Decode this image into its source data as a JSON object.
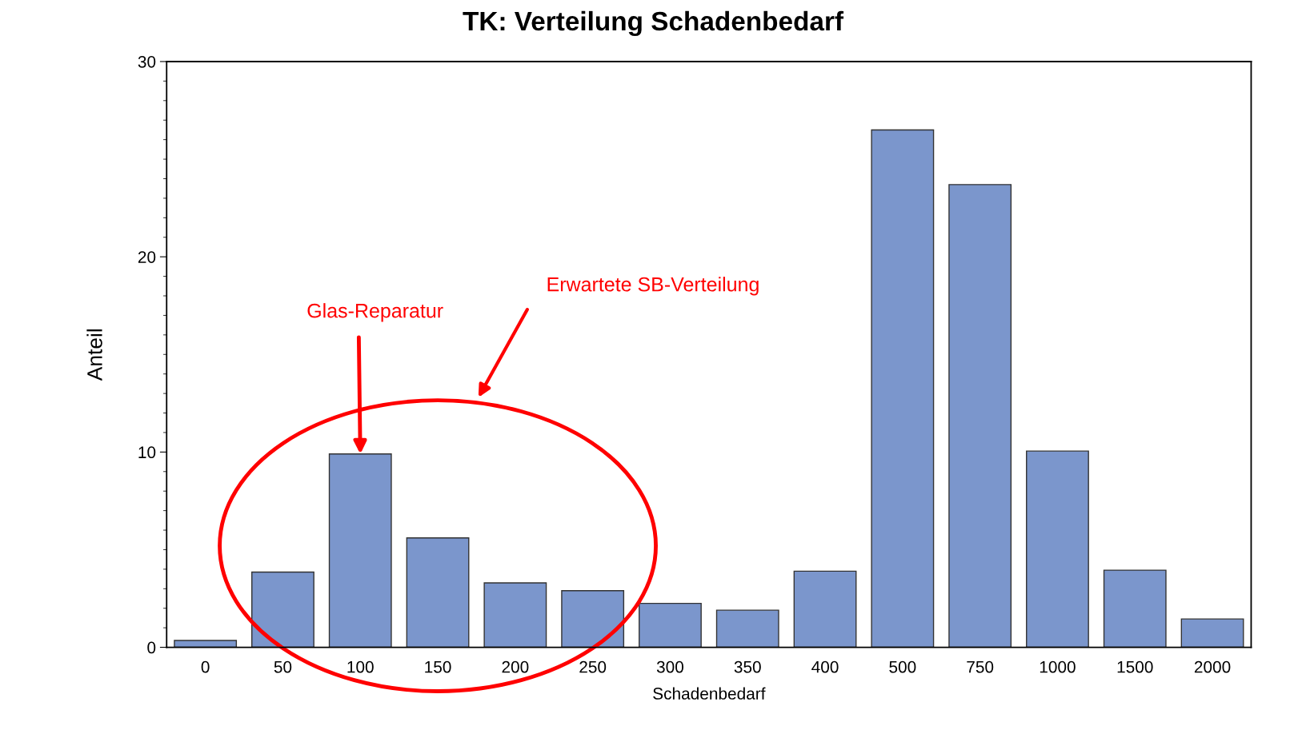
{
  "chart_data": {
    "type": "bar",
    "title": "TK: Verteilung Schadenbedarf",
    "xlabel": "Schadenbedarf",
    "ylabel": "Anteil",
    "categories": [
      "0",
      "50",
      "100",
      "150",
      "200",
      "250",
      "300",
      "350",
      "400",
      "500",
      "750",
      "1000",
      "1500",
      "2000"
    ],
    "values": [
      0.35,
      3.85,
      9.9,
      5.6,
      3.3,
      2.9,
      2.25,
      1.9,
      3.9,
      26.5,
      23.7,
      10.05,
      3.95,
      1.45
    ],
    "color": "#7b96cc",
    "ylim": [
      0,
      30
    ],
    "yticks": [
      0,
      10,
      20,
      30
    ],
    "grid": false,
    "legend": false,
    "annotations": [
      {
        "text": "Glas-Reparatur",
        "x": "100",
        "y": 9.9
      },
      "Erwartete SB-Verteilung"
    ]
  }
}
